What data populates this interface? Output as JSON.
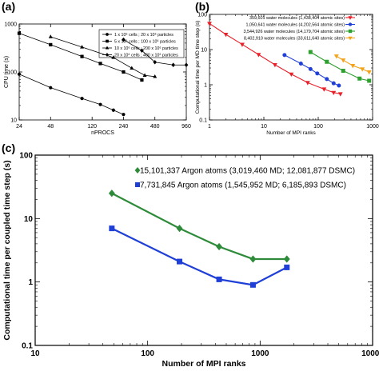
{
  "chart_data": [
    {
      "panel_label": "(a)",
      "type": "line",
      "xlabel": "nPROCS",
      "ylabel": "CPU time (s)",
      "xscale": "log",
      "yscale": "log",
      "xlim": [
        24,
        960
      ],
      "ylim": [
        10,
        1000
      ],
      "xticks": [
        24,
        48,
        120,
        240,
        480,
        960
      ],
      "xtick_labels": [
        "24",
        "48",
        "120",
        "240",
        "480",
        "960"
      ],
      "yticks": [
        10,
        100,
        1000
      ],
      "ytick_labels": [
        "10",
        "100",
        "1000"
      ],
      "legend_position": "top-right",
      "legend_boxed": true,
      "series": [
        {
          "name": "1 x 10⁶ cells ; 20 x 10⁶ particles",
          "marker": "circle",
          "x": [
            24,
            48,
            96,
            144,
            192,
            240
          ],
          "y": [
            90,
            47,
            28,
            21,
            16,
            13
          ]
        },
        {
          "name": "5 x 10⁶ cells ; 100 x 10⁶ particles",
          "marker": "square",
          "x": [
            24,
            48,
            96,
            144,
            240,
            360
          ],
          "y": [
            640,
            370,
            210,
            150,
            100,
            68
          ]
        },
        {
          "name": "10 x 10⁶ cells ; 200 x 10⁶ particles",
          "marker": "triangle",
          "x": [
            48,
            96,
            192,
            288,
            384,
            480
          ],
          "y": [
            540,
            330,
            200,
            120,
            85,
            80
          ]
        },
        {
          "name": "20 x 10⁶ cells ; 400 x 10⁶ particles",
          "marker": "diamond",
          "x": [
            240,
            360,
            480,
            720,
            960
          ],
          "y": [
            470,
            280,
            160,
            140,
            140
          ]
        }
      ]
    },
    {
      "panel_label": "(b)",
      "type": "line",
      "xlabel": "Number of MPI ranks",
      "ylabel": "Computational time per MD time step (s)",
      "xscale": "log",
      "yscale": "log",
      "xlim": [
        1,
        1000
      ],
      "ylim": [
        0.1,
        100
      ],
      "xticks": [
        1,
        10,
        100,
        1000
      ],
      "xtick_labels": [
        "1",
        "10",
        "100",
        "1000"
      ],
      "yticks": [
        0.1,
        1,
        10,
        100
      ],
      "ytick_labels": [
        "0.1",
        "1",
        "10",
        "100"
      ],
      "grid": false,
      "legend_position": "top-right",
      "series": [
        {
          "name": "359,601 water molecules (1,438,404 atomic sites)",
          "color": "#e8202a",
          "marker": "triangle-down",
          "x": [
            1,
            2,
            4,
            8,
            16,
            32,
            64,
            128,
            192,
            256
          ],
          "y": [
            55,
            27,
            14,
            7.2,
            3.7,
            2.0,
            1.15,
            0.75,
            0.6,
            0.55
          ]
        },
        {
          "name": "1,050,641 water molecules (4,202,564 atomic sites)",
          "color": "#1f3fd6",
          "marker": "circle",
          "x": [
            24,
            48,
            72,
            96,
            144,
            192,
            240
          ],
          "y": [
            7.0,
            4.0,
            2.8,
            2.1,
            1.45,
            1.1,
            0.95
          ]
        },
        {
          "name": "3,544,926 water molecules (14,179,704 atomic sites)",
          "color": "#2ea02e",
          "marker": "square",
          "x": [
            72,
            144,
            288,
            576,
            864
          ],
          "y": [
            8.5,
            4.5,
            2.5,
            1.5,
            1.3
          ]
        },
        {
          "name": "8,402,910 water molecules (33,611,640 atomic sites)",
          "color": "#f2a31b",
          "marker": "triangle-down",
          "x": [
            216,
            288,
            432,
            648,
            864
          ],
          "y": [
            6.5,
            5.0,
            3.5,
            2.8,
            2.3
          ]
        }
      ]
    },
    {
      "panel_label": "(c)",
      "type": "line",
      "xlabel": "Number of MPI ranks",
      "ylabel": "Computational time per coupled time step (s)",
      "xscale": "log",
      "yscale": "log",
      "xlim": [
        10,
        10000
      ],
      "ylim": [
        0.1,
        100
      ],
      "xticks": [
        10,
        100,
        1000,
        10000
      ],
      "xtick_labels": [
        "10",
        "100",
        "1000",
        "10000"
      ],
      "yticks": [
        0.1,
        1,
        10,
        100
      ],
      "ytick_labels": [
        "0.1",
        "1",
        "10",
        "100"
      ],
      "grid": false,
      "legend_position": "top-left",
      "series": [
        {
          "name": "15,101,337 Argon atoms (3,019,460 MD; 12,081,877 DSMC)",
          "color": "#2e8b3a",
          "marker": "diamond",
          "x": [
            48,
            192,
            432,
            864,
            1728
          ],
          "y": [
            25,
            7.0,
            3.6,
            2.3,
            2.3
          ]
        },
        {
          "name": "7,731,845 Argon atoms (1,545,952 MD; 6,185,893 DSMC)",
          "color": "#1f3fd6",
          "marker": "square",
          "x": [
            48,
            192,
            432,
            864,
            1728
          ],
          "y": [
            7.0,
            2.1,
            1.1,
            0.9,
            1.7
          ]
        }
      ]
    }
  ]
}
